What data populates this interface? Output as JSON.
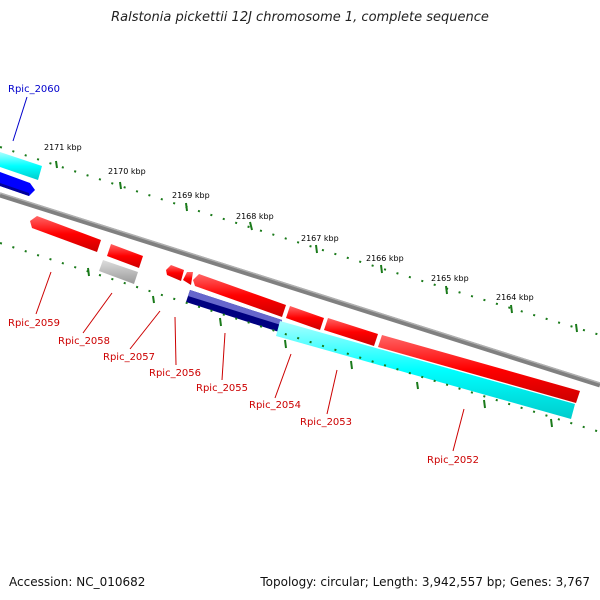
{
  "title": "Ralstonia pickettii 12J chromosome 1, complete sequence",
  "footer": {
    "accession": "Accession: NC_010682",
    "stats": "Topology: circular; Length: 3,942,557 bp; Genes: 3,767"
  },
  "ticks": [
    "2171 kbp",
    "2170 kbp",
    "2169 kbp",
    "2168 kbp",
    "2167 kbp",
    "2166 kbp",
    "2165 kbp",
    "2164 kbp"
  ],
  "genes": [
    {
      "id": "Rpic_2060",
      "color": "#0000cc"
    },
    {
      "id": "Rpic_2059",
      "color": "#cc0000"
    },
    {
      "id": "Rpic_2058",
      "color": "#cc0000"
    },
    {
      "id": "Rpic_2057",
      "color": "#cc0000"
    },
    {
      "id": "Rpic_2056",
      "color": "#cc0000"
    },
    {
      "id": "Rpic_2055",
      "color": "#cc0000"
    },
    {
      "id": "Rpic_2054",
      "color": "#cc0000"
    },
    {
      "id": "Rpic_2053",
      "color": "#cc0000"
    },
    {
      "id": "Rpic_2052",
      "color": "#cc0000"
    }
  ],
  "colors": {
    "forward_cds": "#ff0000",
    "reverse_cds": "#00ffff",
    "blue_cds": "#0000ff",
    "dark_cds": "#000080",
    "pseudo": "#aaaaaa",
    "backbone": "#808080",
    "tick": "#1a7a1a"
  }
}
